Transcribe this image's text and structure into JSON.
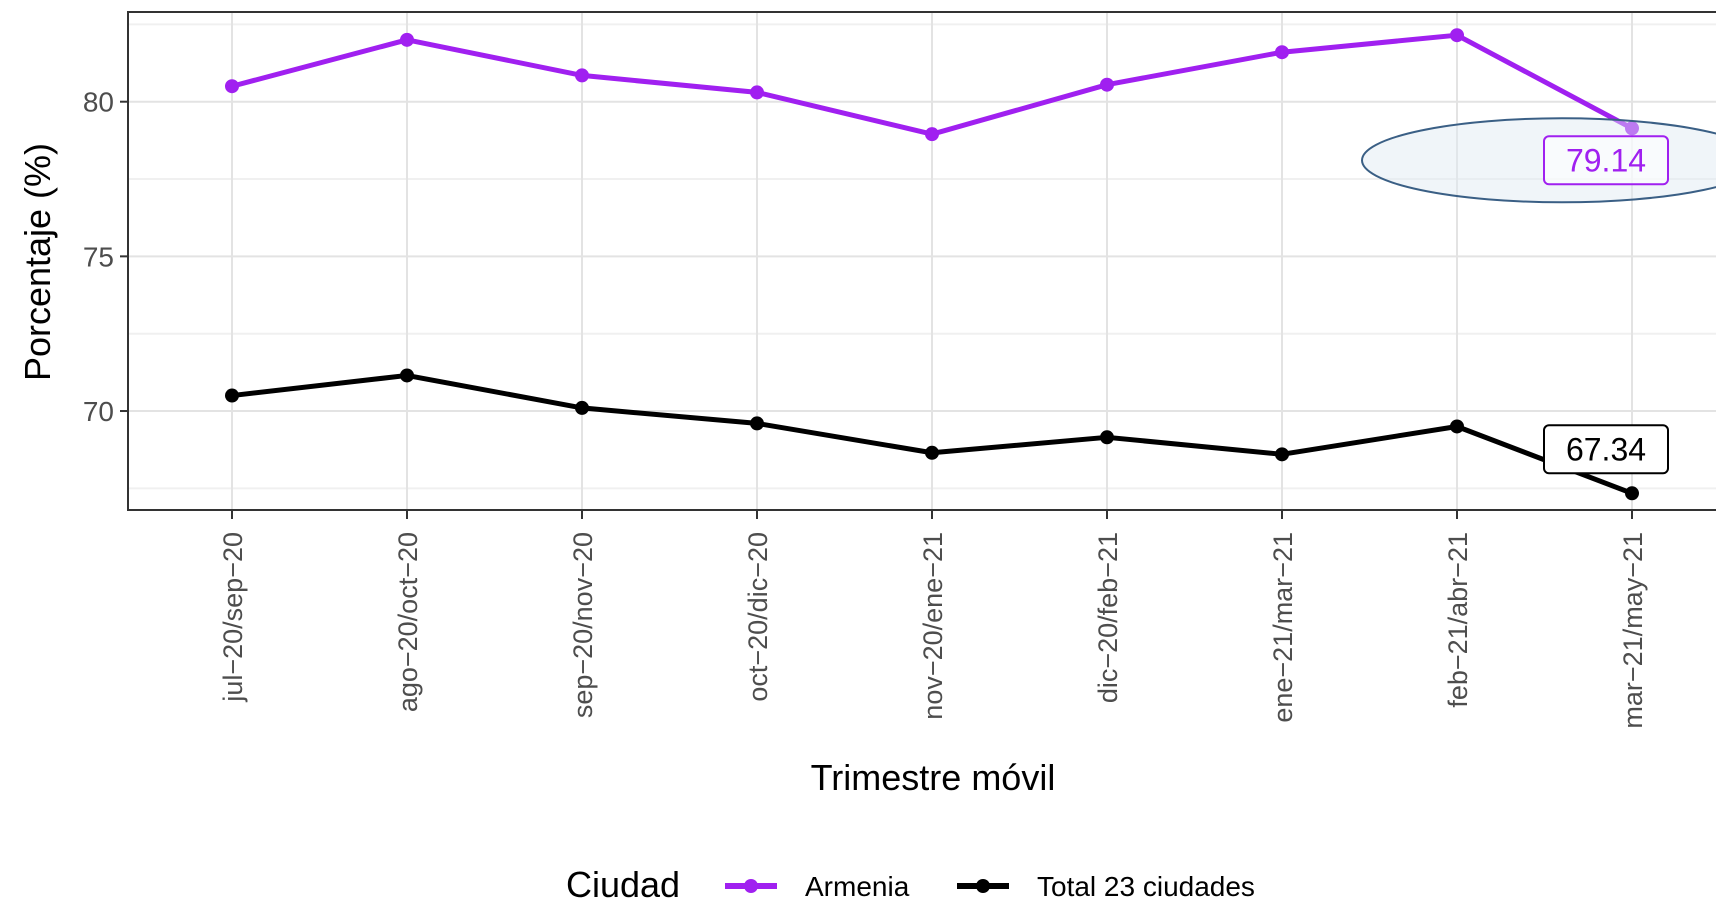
{
  "chart_data": {
    "type": "line",
    "title": "",
    "xlabel": "Trimestre móvil",
    "ylabel": "Porcentaje (%)",
    "categories": [
      "jul−20/sep−20",
      "ago−20/oct−20",
      "sep−20/nov−20",
      "oct−20/dic−20",
      "nov−20/ene−21",
      "dic−20/feb−21",
      "ene−21/mar−21",
      "feb−21/abr−21",
      "mar−21/may−21"
    ],
    "ylim": [
      66.8,
      82.9
    ],
    "yticks": [
      70,
      75,
      80
    ],
    "grid": true,
    "legend_title": "Ciudad",
    "legend_position": "bottom",
    "series": [
      {
        "name": "Armenia",
        "color": "#a020f0",
        "values": [
          80.5,
          82.0,
          80.85,
          80.3,
          78.95,
          80.55,
          81.6,
          82.15,
          79.14
        ]
      },
      {
        "name": "Total 23 ciudades",
        "color": "#000000",
        "values": [
          70.5,
          71.15,
          70.1,
          69.6,
          68.65,
          69.15,
          68.6,
          69.5,
          67.34
        ]
      }
    ],
    "annotations": [
      {
        "series": 0,
        "index": 8,
        "text": "79.14",
        "color": "#a020f0",
        "highlighted": true
      },
      {
        "series": 1,
        "index": 8,
        "text": "67.34",
        "color": "#000000",
        "highlighted": false
      }
    ]
  }
}
